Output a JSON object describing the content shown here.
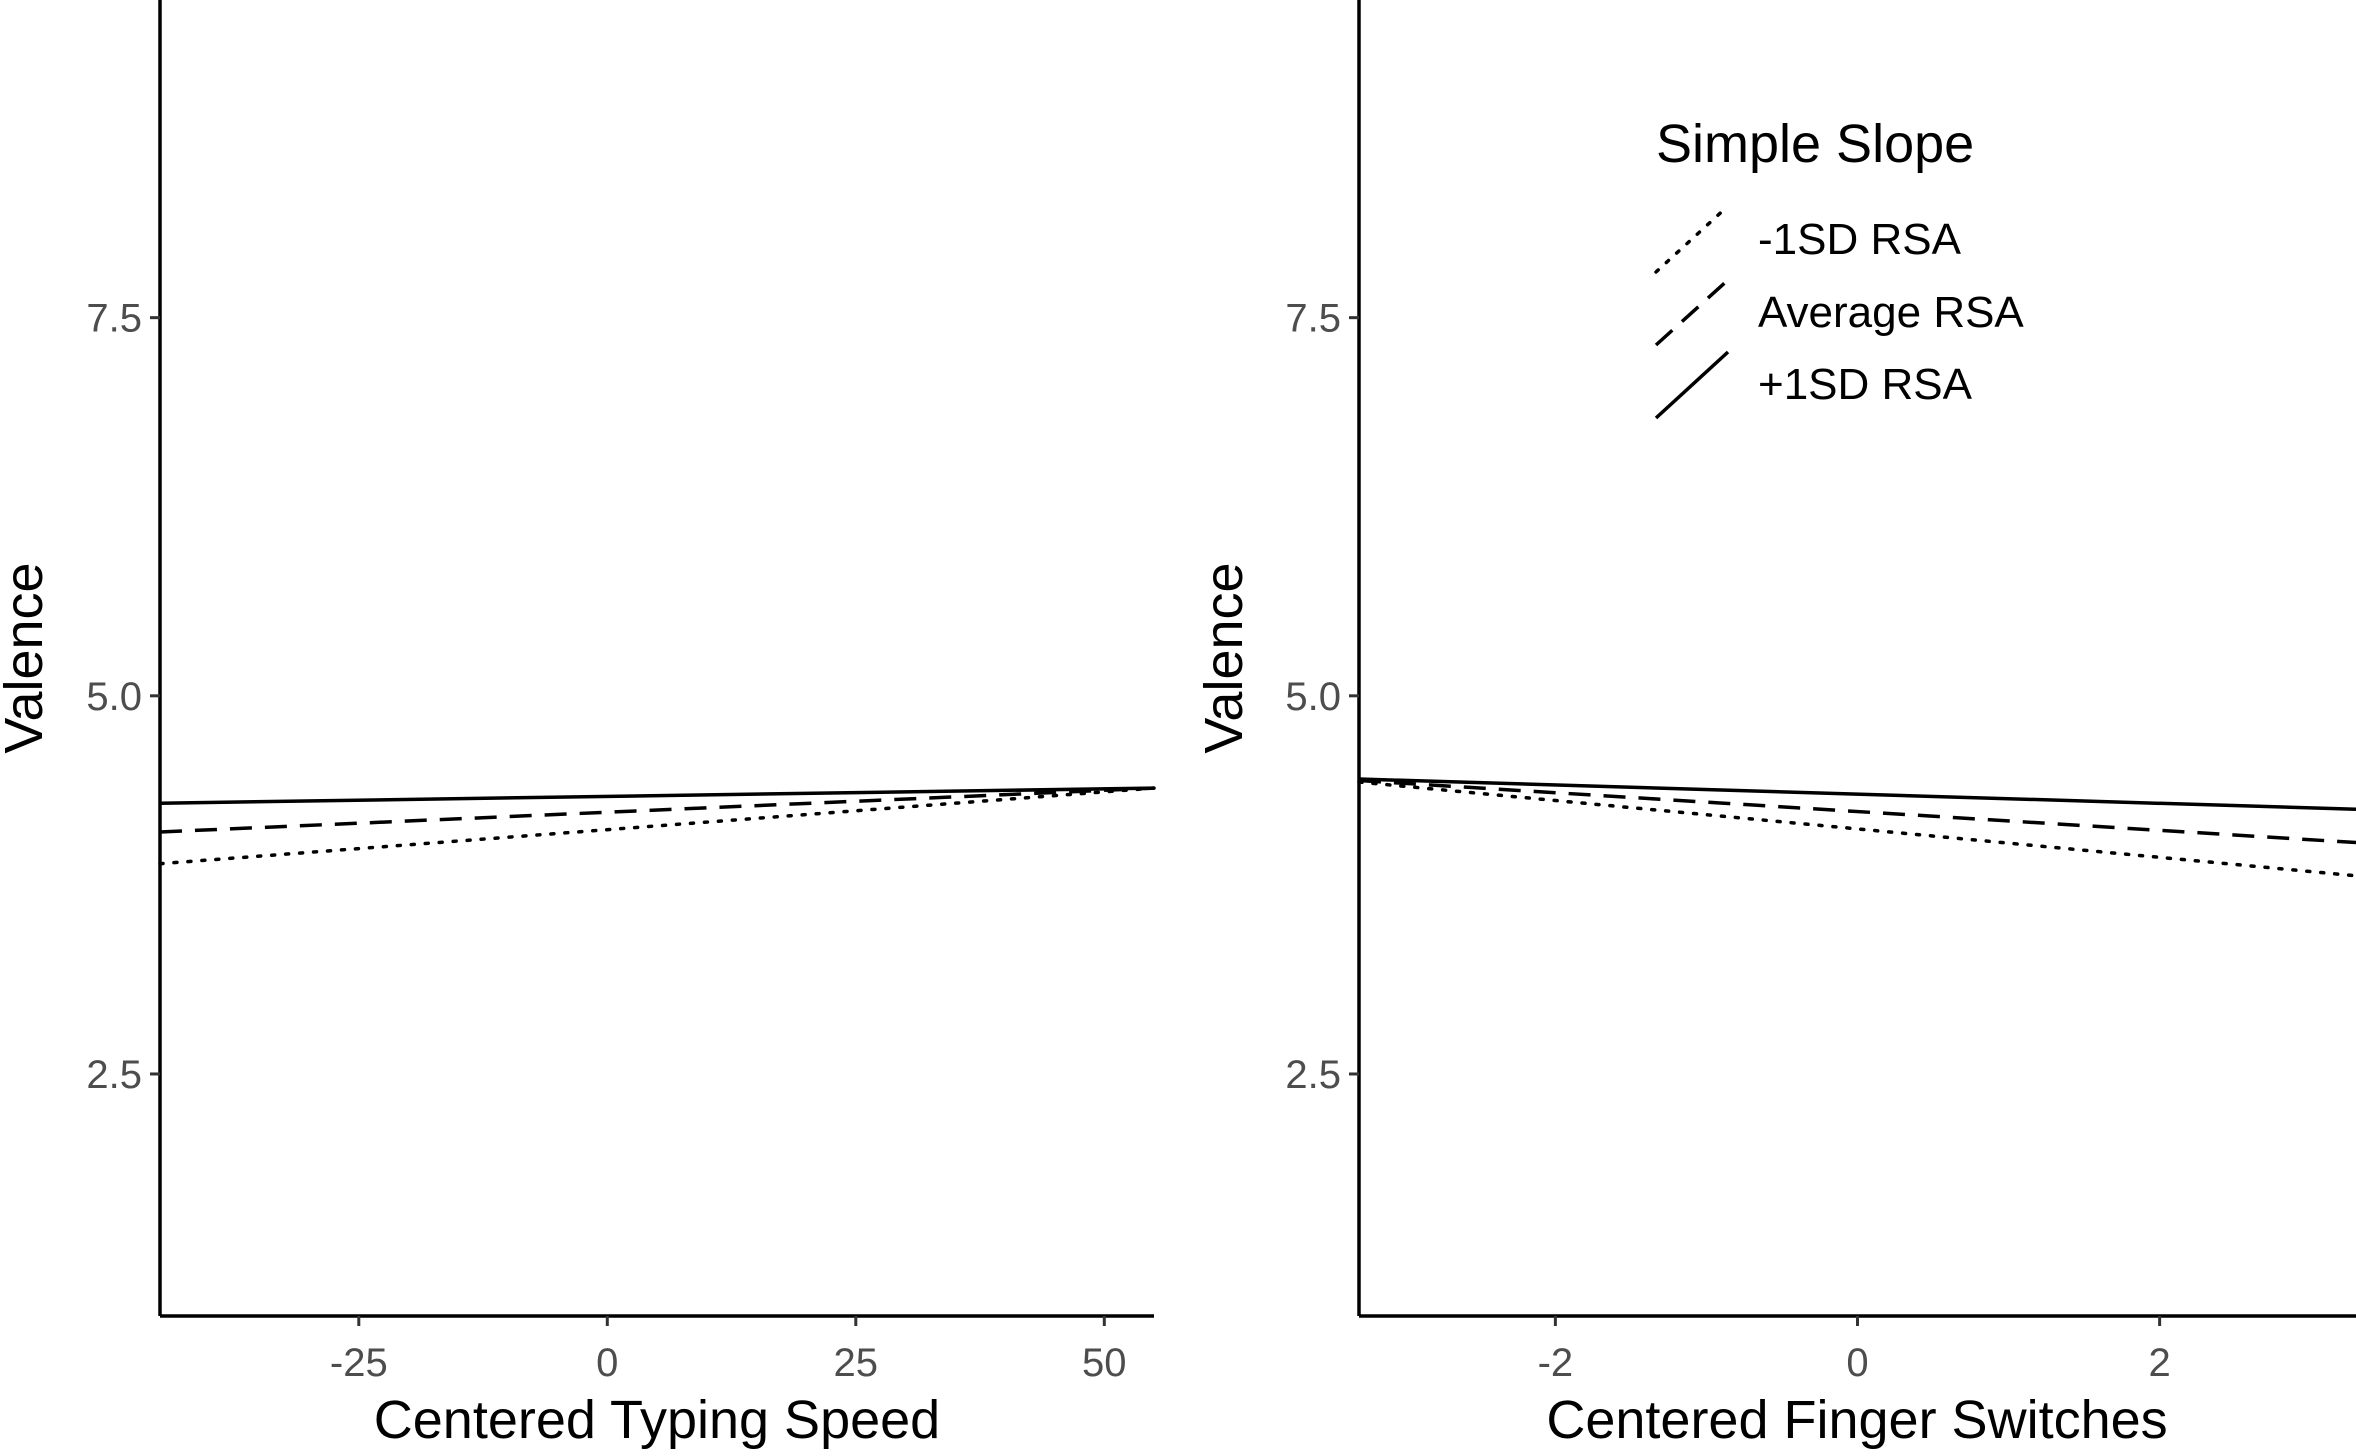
{
  "chart_data": [
    {
      "type": "line",
      "xlabel": "Centered Typing Speed",
      "ylabel": "Valence",
      "xlim": [
        -45,
        55
      ],
      "ylim": [
        0.9,
        9.6
      ],
      "x_ticks": [
        -25,
        0,
        25,
        50
      ],
      "x_tick_labels": [
        "-25",
        "0",
        "25",
        "50"
      ],
      "y_ticks": [
        2.5,
        5.0,
        7.5
      ],
      "y_tick_labels": [
        "2.5",
        "5.0",
        "7.5"
      ],
      "grid": false,
      "series": [
        {
          "name": "-1SD RSA",
          "linetype": "dotted",
          "x": [
            -45,
            55
          ],
          "y": [
            3.89,
            4.39
          ]
        },
        {
          "name": "Average RSA",
          "linetype": "dashed",
          "x": [
            -45,
            55
          ],
          "y": [
            4.1,
            4.39
          ]
        },
        {
          "name": "+1SD RSA",
          "linetype": "solid",
          "x": [
            -45,
            55
          ],
          "y": [
            4.29,
            4.39
          ]
        }
      ]
    },
    {
      "type": "line",
      "xlabel": "Centered Finger Switches",
      "ylabel": "Valence",
      "xlim": [
        -3.3,
        3.3
      ],
      "ylim": [
        0.9,
        9.6
      ],
      "x_ticks": [
        -2,
        0,
        2
      ],
      "x_tick_labels": [
        "-2",
        "0",
        "2"
      ],
      "y_ticks": [
        2.5,
        5.0,
        7.5
      ],
      "y_tick_labels": [
        "2.5",
        "5.0",
        "7.5"
      ],
      "grid": false,
      "legend_placement": "top-right",
      "series": [
        {
          "name": "-1SD RSA",
          "linetype": "dotted",
          "x": [
            -3.3,
            3.3
          ],
          "y": [
            4.43,
            3.81
          ]
        },
        {
          "name": "Average RSA",
          "linetype": "dashed",
          "x": [
            -3.3,
            3.3
          ],
          "y": [
            4.44,
            4.03
          ]
        },
        {
          "name": "+1SD RSA",
          "linetype": "solid",
          "x": [
            -3.3,
            3.3
          ],
          "y": [
            4.45,
            4.25
          ]
        }
      ]
    }
  ],
  "legend": {
    "title": "Simple Slope",
    "items": [
      {
        "label": "-1SD RSA",
        "linetype": "dotted"
      },
      {
        "label": "Average RSA",
        "linetype": "dashed"
      },
      {
        "label": "+1SD RSA",
        "linetype": "solid"
      }
    ]
  },
  "colors": {
    "line": "#000000",
    "tick_label": "#4d4d4d",
    "background": "#ffffff"
  }
}
